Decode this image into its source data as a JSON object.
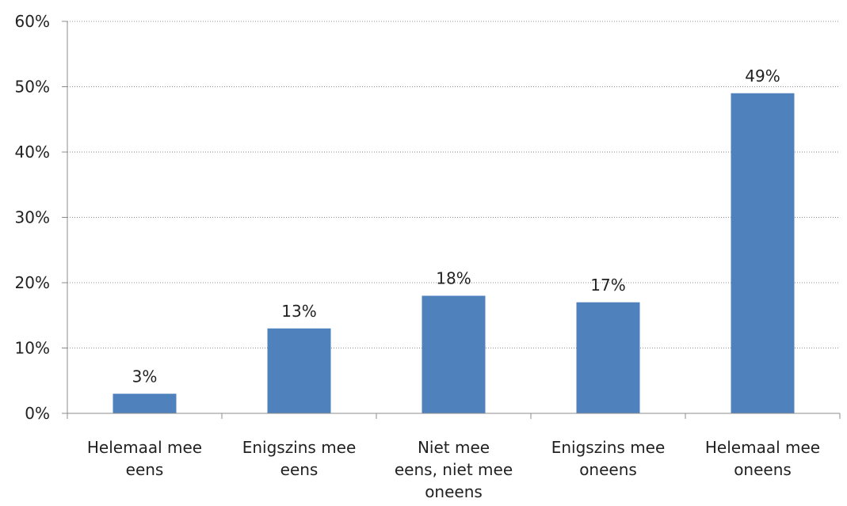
{
  "chart_data": {
    "type": "bar",
    "categories": [
      [
        "Helemaal mee",
        "eens"
      ],
      [
        "Enigszins mee",
        "eens"
      ],
      [
        "Niet mee",
        "eens, niet mee",
        "oneens"
      ],
      [
        "Enigszins mee",
        "oneens"
      ],
      [
        "Helemaal mee",
        "oneens"
      ]
    ],
    "values": [
      3,
      13,
      18,
      17,
      49
    ],
    "data_labels": [
      "3%",
      "13%",
      "18%",
      "17%",
      "49%"
    ],
    "y_ticks": [
      "0%",
      "10%",
      "20%",
      "30%",
      "40%",
      "50%",
      "60%"
    ],
    "ylim": [
      0,
      60
    ],
    "grid": true,
    "legend": "none",
    "bar_color": "#4f81bd",
    "grid_color": "#8c8c8c",
    "axis_color": "#8c8c8c"
  }
}
